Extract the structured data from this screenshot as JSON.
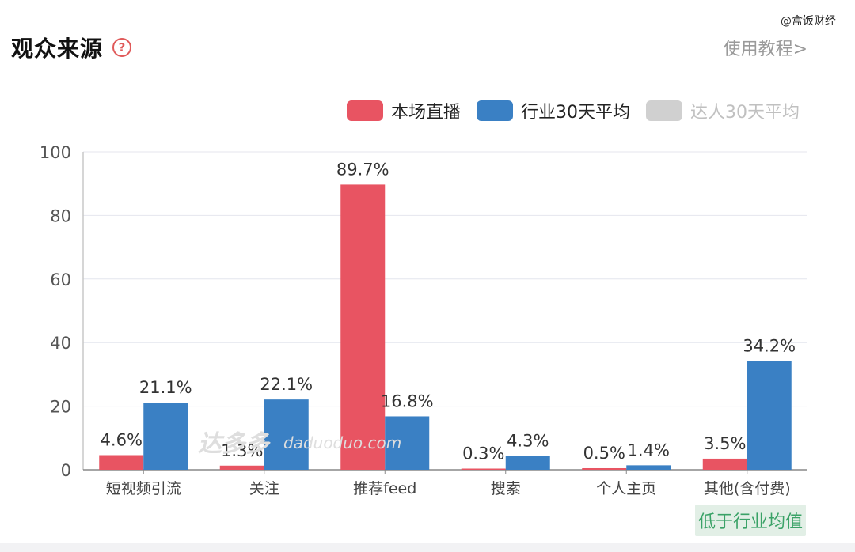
{
  "watermark_top": "@盒饭财经",
  "header": {
    "title": "观众来源",
    "help_icon": "?",
    "tutorial": "使用教程>"
  },
  "legend": [
    {
      "label": "本场直播",
      "color": "#e85462",
      "enabled": true
    },
    {
      "label": "行业30天平均",
      "color": "#3a80c4",
      "enabled": true
    },
    {
      "label": "达人30天平均",
      "color": "#d0d0d0",
      "enabled": false
    }
  ],
  "watermark": {
    "logo": "达多多",
    "site": "daduoduo.com"
  },
  "chart_data": {
    "type": "bar",
    "categories": [
      "短视频引流",
      "关注",
      "推荐feed",
      "搜索",
      "个人主页",
      "其他(含付费)"
    ],
    "series": [
      {
        "name": "本场直播",
        "color": "#e85462",
        "values": [
          4.6,
          1.3,
          89.7,
          0.3,
          0.5,
          3.5
        ],
        "labels": [
          "4.6%",
          "1.3%",
          "89.7%",
          "0.3%",
          "0.5%",
          "3.5%"
        ]
      },
      {
        "name": "行业30天平均",
        "color": "#3a80c4",
        "values": [
          21.1,
          22.1,
          16.8,
          4.3,
          1.4,
          34.2
        ],
        "labels": [
          "21.1%",
          "22.1%",
          "16.8%",
          "4.3%",
          "1.4%",
          "34.2%"
        ]
      }
    ],
    "y_ticks": [
      "0",
      "20",
      "40",
      "60",
      "80",
      "100"
    ],
    "ylim": [
      0,
      100
    ],
    "grid": true
  },
  "badge": "低于行业均值"
}
